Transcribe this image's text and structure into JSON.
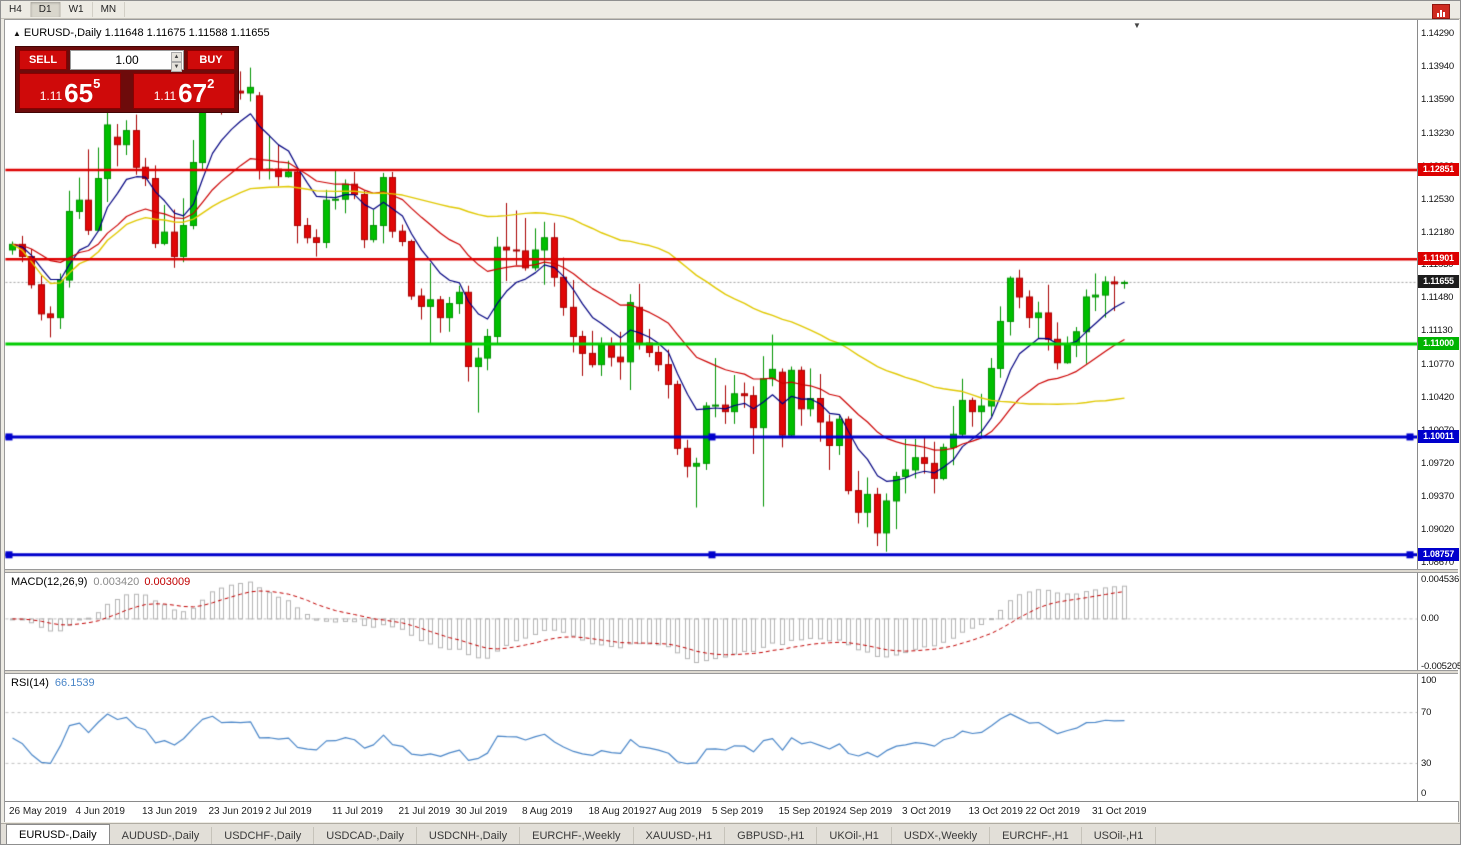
{
  "toolbar": {
    "timeframes": [
      {
        "label": "H4",
        "active": false
      },
      {
        "label": "D1",
        "active": true
      },
      {
        "label": "W1",
        "active": false
      },
      {
        "label": "MN",
        "active": false
      }
    ]
  },
  "chart_header": {
    "collapse_icon": "▲",
    "symbol_period": "EURUSD-,Daily",
    "ohlc_text": "1.11648 1.11675 1.11588 1.11655",
    "shift_marker_icon": "▼"
  },
  "trade_panel": {
    "sell_label": "SELL",
    "buy_label": "BUY",
    "volume": "1.00",
    "spinner_up_icon": "▲",
    "spinner_down_icon": "▼",
    "bid": {
      "prefix": "1.11",
      "big": "65",
      "sup": "5"
    },
    "ask": {
      "prefix": "1.11",
      "big": "67",
      "sup": "2"
    }
  },
  "chart_data": {
    "type": "candlestick",
    "symbol": "EURUSD-",
    "period": "Daily",
    "colors": {
      "up": "#00bf00",
      "up_border": "#009300",
      "down": "#e00707",
      "down_border": "#a80000",
      "macd_hist": "#b4b4b4",
      "macd_signal": "#c00000",
      "rsi_line": "#4a86c8",
      "level_dash": "#c0c0c0",
      "current_line": "#a0a0a0"
    },
    "moving_averages": [
      {
        "period": 8,
        "type": "ema",
        "color": "#000080",
        "width": 1.2
      },
      {
        "period": 21,
        "type": "ema",
        "color": "#cc0000",
        "width": 1.2
      },
      {
        "period": 50,
        "type": "sma",
        "color": "#e0c800",
        "width": 1.4
      }
    ],
    "price_axis_labels": [
      {
        "text": "1.14290",
        "value": 1.1429
      },
      {
        "text": "1.13940",
        "value": 1.1394
      },
      {
        "text": "1.13590",
        "value": 1.1359
      },
      {
        "text": "1.13230",
        "value": 1.1323
      },
      {
        "text": "1.12880",
        "value": 1.1288
      },
      {
        "text": "1.12530",
        "value": 1.1253
      },
      {
        "text": "1.12180",
        "value": 1.1218
      },
      {
        "text": "1.11830",
        "value": 1.1183
      },
      {
        "text": "1.11480",
        "value": 1.1148
      },
      {
        "text": "1.11130",
        "value": 1.1113
      },
      {
        "text": "1.10770",
        "value": 1.1077
      },
      {
        "text": "1.10420",
        "value": 1.1042
      },
      {
        "text": "1.10070",
        "value": 1.1007
      },
      {
        "text": "1.09720",
        "value": 1.0972
      },
      {
        "text": "1.09370",
        "value": 1.0937
      },
      {
        "text": "1.09020",
        "value": 1.0902
      },
      {
        "text": "1.08670",
        "value": 1.0867
      }
    ],
    "hlines": [
      {
        "price": 1.12851,
        "color": "#dd0000",
        "width": 2.5,
        "label": "1.12851",
        "anchors": false
      },
      {
        "price": 1.11901,
        "color": "#dd0000",
        "width": 2.5,
        "label": "1.11901",
        "anchors": false
      },
      {
        "price": 1.11,
        "color": "#00cc00",
        "width": 3,
        "label": "1.11000",
        "anchors": false
      },
      {
        "price": 1.10011,
        "color": "#0000cc",
        "width": 3,
        "label": "1.10011",
        "anchors": true
      },
      {
        "price": 1.08757,
        "color": "#0000cc",
        "width": 3,
        "label": "1.08757",
        "anchors": true
      }
    ],
    "price_tags": [
      {
        "text": "1.12851",
        "price": 1.12851,
        "bg": "#dd0000",
        "current": false
      },
      {
        "text": "1.11901",
        "price": 1.11901,
        "bg": "#dd0000",
        "current": false
      },
      {
        "text": "1.11655",
        "price": 1.11655,
        "bg": "#1c1c1c",
        "current": true
      },
      {
        "text": "1.11000",
        "price": 1.11,
        "bg": "#00b400",
        "current": false
      },
      {
        "text": "1.10011",
        "price": 1.10011,
        "bg": "#0000cc",
        "current": false
      },
      {
        "text": "1.08757",
        "price": 1.08757,
        "bg": "#0000cc",
        "current": false
      }
    ],
    "current_price": {
      "value": 1.11655,
      "label": "1.11655"
    },
    "date_labels": [
      {
        "text": "26 May 2019",
        "bar": 0
      },
      {
        "text": "4 Jun 2019",
        "bar": 7
      },
      {
        "text": "13 Jun 2019",
        "bar": 14
      },
      {
        "text": "23 Jun 2019",
        "bar": 21
      },
      {
        "text": "2 Jul 2019",
        "bar": 27
      },
      {
        "text": "11 Jul 2019",
        "bar": 34
      },
      {
        "text": "21 Jul 2019",
        "bar": 41
      },
      {
        "text": "30 Jul 2019",
        "bar": 47
      },
      {
        "text": "8 Aug 2019",
        "bar": 54
      },
      {
        "text": "18 Aug 2019",
        "bar": 61
      },
      {
        "text": "27 Aug 2019",
        "bar": 67
      },
      {
        "text": "5 Sep 2019",
        "bar": 74
      },
      {
        "text": "15 Sep 2019",
        "bar": 81
      },
      {
        "text": "24 Sep 2019",
        "bar": 87
      },
      {
        "text": "3 Oct 2019",
        "bar": 94
      },
      {
        "text": "13 Oct 2019",
        "bar": 101
      },
      {
        "text": "22 Oct 2019",
        "bar": 107
      },
      {
        "text": "31 Oct 2019",
        "bar": 114
      }
    ],
    "ohlc": [
      [
        1.12,
        1.1209,
        1.1195,
        1.1206
      ],
      [
        1.1206,
        1.1215,
        1.1187,
        1.1193
      ],
      [
        1.1193,
        1.1201,
        1.1159,
        1.1163
      ],
      [
        1.1163,
        1.1173,
        1.1125,
        1.1132
      ],
      [
        1.1132,
        1.114,
        1.1107,
        1.1128
      ],
      [
        1.1128,
        1.1175,
        1.1116,
        1.1168
      ],
      [
        1.1168,
        1.1263,
        1.116,
        1.1241
      ],
      [
        1.1241,
        1.1277,
        1.1233,
        1.1253
      ],
      [
        1.1253,
        1.1307,
        1.1216,
        1.1221
      ],
      [
        1.1221,
        1.1309,
        1.122,
        1.1276
      ],
      [
        1.1276,
        1.1348,
        1.1251,
        1.1333
      ],
      [
        1.132,
        1.1334,
        1.1289,
        1.1312
      ],
      [
        1.1312,
        1.1338,
        1.1301,
        1.1327
      ],
      [
        1.1327,
        1.1344,
        1.128,
        1.1288
      ],
      [
        1.1288,
        1.1298,
        1.1268,
        1.1276
      ],
      [
        1.1276,
        1.129,
        1.1202,
        1.1207
      ],
      [
        1.1207,
        1.1248,
        1.1205,
        1.1219
      ],
      [
        1.1219,
        1.1243,
        1.1181,
        1.1193
      ],
      [
        1.1193,
        1.1255,
        1.1187,
        1.1226
      ],
      [
        1.1226,
        1.1317,
        1.1222,
        1.1293
      ],
      [
        1.1293,
        1.1378,
        1.1285,
        1.1368
      ],
      [
        1.1368,
        1.1406,
        1.1362,
        1.1399
      ],
      [
        1.1399,
        1.1412,
        1.1344,
        1.1365
      ],
      [
        1.1365,
        1.1392,
        1.1351,
        1.1369
      ],
      [
        1.1369,
        1.139,
        1.136,
        1.1367
      ],
      [
        1.1367,
        1.1394,
        1.1358,
        1.1373
      ],
      [
        1.1364,
        1.1368,
        1.1275,
        1.1285
      ],
      [
        1.1285,
        1.1322,
        1.1275,
        1.1286
      ],
      [
        1.1286,
        1.1312,
        1.1268,
        1.1278
      ],
      [
        1.1278,
        1.1295,
        1.1277,
        1.1283
      ],
      [
        1.1283,
        1.1286,
        1.1207,
        1.1226
      ],
      [
        1.1226,
        1.1234,
        1.1207,
        1.1213
      ],
      [
        1.1213,
        1.1222,
        1.1193,
        1.1208
      ],
      [
        1.1208,
        1.1264,
        1.1202,
        1.1253
      ],
      [
        1.1253,
        1.1285,
        1.1243,
        1.1254
      ],
      [
        1.1254,
        1.1275,
        1.1239,
        1.127
      ],
      [
        1.127,
        1.1283,
        1.1254,
        1.1259
      ],
      [
        1.1259,
        1.1263,
        1.1202,
        1.1211
      ],
      [
        1.1211,
        1.1243,
        1.1208,
        1.1226
      ],
      [
        1.1226,
        1.1282,
        1.1207,
        1.1277
      ],
      [
        1.1277,
        1.1283,
        1.1213,
        1.122
      ],
      [
        1.122,
        1.1227,
        1.1204,
        1.1209
      ],
      [
        1.1209,
        1.1211,
        1.1147,
        1.1151
      ],
      [
        1.1151,
        1.1159,
        1.1126,
        1.114
      ],
      [
        1.114,
        1.1186,
        1.1101,
        1.1147
      ],
      [
        1.1147,
        1.1151,
        1.1112,
        1.1128
      ],
      [
        1.1128,
        1.115,
        1.1113,
        1.1143
      ],
      [
        1.1143,
        1.1162,
        1.1132,
        1.1155
      ],
      [
        1.1155,
        1.1162,
        1.106,
        1.1076
      ],
      [
        1.1076,
        1.1096,
        1.1027,
        1.1085
      ],
      [
        1.1085,
        1.1116,
        1.1072,
        1.1108
      ],
      [
        1.1108,
        1.1214,
        1.1101,
        1.1203
      ],
      [
        1.1203,
        1.125,
        1.1167,
        1.12
      ],
      [
        1.12,
        1.1242,
        1.1184,
        1.1199
      ],
      [
        1.1199,
        1.1234,
        1.1178,
        1.1181
      ],
      [
        1.1181,
        1.1223,
        1.1178,
        1.12
      ],
      [
        1.12,
        1.123,
        1.1163,
        1.1213
      ],
      [
        1.1213,
        1.1229,
        1.1161,
        1.1171
      ],
      [
        1.1171,
        1.1192,
        1.113,
        1.1139
      ],
      [
        1.1139,
        1.1168,
        1.1091,
        1.1108
      ],
      [
        1.1108,
        1.1114,
        1.1066,
        1.109
      ],
      [
        1.109,
        1.1114,
        1.1075,
        1.1078
      ],
      [
        1.1078,
        1.1107,
        1.1066,
        1.1099
      ],
      [
        1.1099,
        1.1107,
        1.1076,
        1.1086
      ],
      [
        1.1086,
        1.1113,
        1.1062,
        1.1081
      ],
      [
        1.1081,
        1.1153,
        1.1051,
        1.1144
      ],
      [
        1.1139,
        1.1164,
        1.1094,
        1.1101
      ],
      [
        1.1101,
        1.1116,
        1.1086,
        1.1091
      ],
      [
        1.1091,
        1.1098,
        1.1071,
        1.1078
      ],
      [
        1.1078,
        1.1094,
        1.1042,
        1.1057
      ],
      [
        1.1057,
        1.1061,
        1.0982,
        1.0989
      ],
      [
        1.0989,
        1.0998,
        1.0958,
        1.097
      ],
      [
        1.097,
        1.0979,
        1.0926,
        1.0973
      ],
      [
        1.0973,
        1.1038,
        1.0966,
        1.1034
      ],
      [
        1.1034,
        1.1085,
        1.1022,
        1.1035
      ],
      [
        1.1035,
        1.1056,
        1.1015,
        1.1028
      ],
      [
        1.1028,
        1.1067,
        1.1015,
        1.1047
      ],
      [
        1.1047,
        1.1059,
        1.1032,
        1.1045
      ],
      [
        1.1045,
        1.1055,
        1.0983,
        1.1011
      ],
      [
        1.1011,
        1.1087,
        1.0927,
        1.1063
      ],
      [
        1.1063,
        1.111,
        1.1055,
        1.1073
      ],
      [
        1.107,
        1.1074,
        1.099,
        1.1003
      ],
      [
        1.1003,
        1.1076,
        1.1,
        1.1072
      ],
      [
        1.1072,
        1.1076,
        1.1013,
        1.1031
      ],
      [
        1.1031,
        1.1074,
        1.1023,
        1.1042
      ],
      [
        1.1042,
        1.1068,
        1.0996,
        1.1017
      ],
      [
        1.1017,
        1.1025,
        1.0966,
        1.0992
      ],
      [
        1.0992,
        1.1024,
        1.0982,
        1.102
      ],
      [
        1.102,
        1.1023,
        1.094,
        1.0944
      ],
      [
        1.0944,
        1.0965,
        1.0909,
        1.0921
      ],
      [
        1.0921,
        1.0958,
        1.0905,
        1.094
      ],
      [
        1.094,
        1.0947,
        1.0885,
        1.0899
      ],
      [
        1.0899,
        1.0941,
        1.0879,
        1.0933
      ],
      [
        1.0933,
        1.0964,
        1.0903,
        1.0959
      ],
      [
        1.0959,
        1.0999,
        1.0941,
        1.0966
      ],
      [
        1.0966,
        1.0999,
        1.0957,
        1.0979
      ],
      [
        1.0979,
        1.1,
        1.0962,
        1.0973
      ],
      [
        1.0973,
        1.0996,
        1.0941,
        1.0957
      ],
      [
        1.0957,
        1.0994,
        1.0955,
        1.099
      ],
      [
        1.099,
        1.1034,
        1.0971,
        1.1004
      ],
      [
        1.1004,
        1.1063,
        1.1002,
        1.104
      ],
      [
        1.104,
        1.1043,
        1.1012,
        1.1028
      ],
      [
        1.1028,
        1.1047,
        1.1001,
        1.1034
      ],
      [
        1.1034,
        1.1085,
        1.1023,
        1.1074
      ],
      [
        1.1074,
        1.114,
        1.1064,
        1.1124
      ],
      [
        1.1124,
        1.1172,
        1.1109,
        1.117
      ],
      [
        1.117,
        1.1179,
        1.1138,
        1.115
      ],
      [
        1.115,
        1.1157,
        1.1117,
        1.1128
      ],
      [
        1.1128,
        1.1145,
        1.1106,
        1.1133
      ],
      [
        1.1133,
        1.1163,
        1.1093,
        1.1105
      ],
      [
        1.1105,
        1.1123,
        1.1073,
        1.108
      ],
      [
        1.108,
        1.1108,
        1.1079,
        1.1099
      ],
      [
        1.1099,
        1.1118,
        1.1086,
        1.1113
      ],
      [
        1.1113,
        1.1158,
        1.1079,
        1.115
      ],
      [
        1.115,
        1.1175,
        1.1135,
        1.1152
      ],
      [
        1.1152,
        1.1172,
        1.1128,
        1.1166
      ],
      [
        1.1166,
        1.1172,
        1.1135,
        1.1164
      ],
      [
        1.11648,
        1.11675,
        1.11588,
        1.11655
      ]
    ],
    "macd": {
      "name": "MACD(12,26,9)",
      "value_main": "0.003420",
      "value_signal": "0.003009",
      "axis_labels": [
        {
          "text": "0.004536",
          "value": 0.004536
        },
        {
          "text": "0.00",
          "value": 0
        },
        {
          "text": "-0.005205",
          "value": -0.005205
        }
      ]
    },
    "rsi": {
      "name": "RSI(14)",
      "value": "66.1539",
      "levels": [
        70,
        30
      ],
      "axis_labels": [
        {
          "text": "100",
          "value": 100
        },
        {
          "text": "70",
          "value": 70
        },
        {
          "text": "30",
          "value": 30
        },
        {
          "text": "0",
          "value": 0
        }
      ]
    }
  },
  "tabs": [
    {
      "label": "EURUSD-,Daily",
      "active": true
    },
    {
      "label": "AUDUSD-,Daily",
      "active": false
    },
    {
      "label": "USDCHF-,Daily",
      "active": false
    },
    {
      "label": "USDCAD-,Daily",
      "active": false
    },
    {
      "label": "USDCNH-,Daily",
      "active": false
    },
    {
      "label": "EURCHF-,Weekly",
      "active": false
    },
    {
      "label": "XAUUSD-,H1",
      "active": false
    },
    {
      "label": "GBPUSD-,H1",
      "active": false
    },
    {
      "label": "UKOil-,H1",
      "active": false
    },
    {
      "label": "USDX-,Weekly",
      "active": false
    },
    {
      "label": "EURCHF-,H1",
      "active": false
    },
    {
      "label": "USOil-,H1",
      "active": false
    }
  ]
}
